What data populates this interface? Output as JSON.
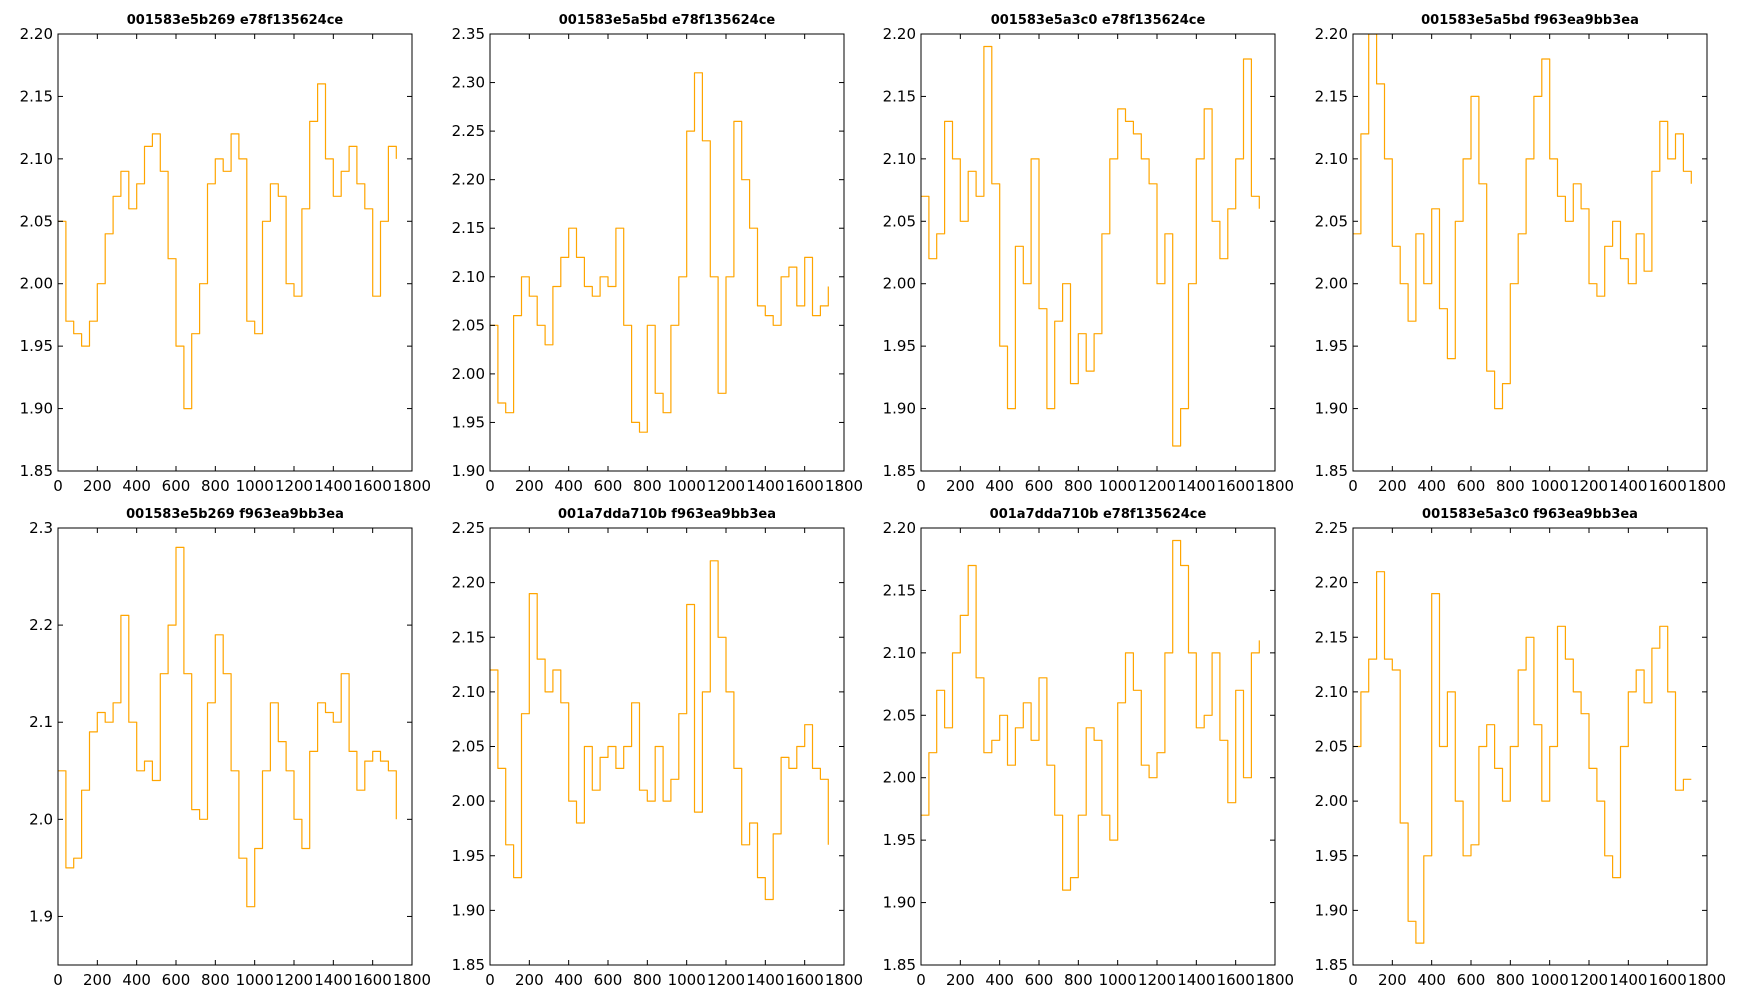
{
  "figure": {
    "background": "#ffffff",
    "line_color": "#ffa500",
    "grid": false,
    "legend": "none"
  },
  "chart_data": [
    {
      "type": "line",
      "title": "001583e5b269 e78f135624ce",
      "xlim": [
        0,
        1800
      ],
      "ylim": [
        1.85,
        2.2
      ],
      "xticks": [
        0,
        200,
        400,
        600,
        800,
        1000,
        1200,
        1400,
        1600,
        1800
      ],
      "xtick_labels": [
        "0",
        "200",
        "400",
        "600",
        "800",
        "1000",
        "1200",
        "1400",
        "1600",
        "1800"
      ],
      "yticks": [
        1.85,
        1.9,
        1.95,
        2.0,
        2.05,
        2.1,
        2.15,
        2.2
      ],
      "ytick_labels": [
        "1.85",
        "1.90",
        "1.95",
        "2.00",
        "2.05",
        "2.10",
        "2.15",
        "2.20"
      ],
      "series": [
        {
          "x": [
            0,
            40,
            80,
            120,
            160,
            200,
            240,
            280,
            320,
            360,
            400,
            440,
            480,
            520,
            560,
            600,
            640,
            680,
            720,
            760,
            800,
            840,
            880,
            920,
            960,
            1000,
            1040,
            1080,
            1120,
            1160,
            1200,
            1240,
            1280,
            1320,
            1360,
            1400,
            1440,
            1480,
            1520,
            1560,
            1600,
            1640,
            1680,
            1720
          ],
          "y": [
            2.05,
            1.97,
            1.96,
            1.95,
            1.97,
            2.0,
            2.04,
            2.07,
            2.09,
            2.06,
            2.08,
            2.11,
            2.12,
            2.09,
            2.02,
            1.95,
            1.9,
            1.96,
            2.0,
            2.08,
            2.1,
            2.09,
            2.12,
            2.1,
            1.97,
            1.96,
            2.05,
            2.08,
            2.07,
            2.0,
            1.99,
            2.06,
            2.13,
            2.16,
            2.1,
            2.07,
            2.09,
            2.11,
            2.08,
            2.06,
            1.99,
            2.05,
            2.11,
            2.1
          ]
        }
      ]
    },
    {
      "type": "line",
      "title": "001583e5a5bd e78f135624ce",
      "xlim": [
        0,
        1800
      ],
      "ylim": [
        1.9,
        2.35
      ],
      "xticks": [
        0,
        200,
        400,
        600,
        800,
        1000,
        1200,
        1400,
        1600,
        1800
      ],
      "xtick_labels": [
        "0",
        "200",
        "400",
        "600",
        "800",
        "1000",
        "1200",
        "1400",
        "1600",
        "1800"
      ],
      "yticks": [
        1.9,
        1.95,
        2.0,
        2.05,
        2.1,
        2.15,
        2.2,
        2.25,
        2.3,
        2.35
      ],
      "ytick_labels": [
        "1.90",
        "1.95",
        "2.00",
        "2.05",
        "2.10",
        "2.15",
        "2.20",
        "2.25",
        "2.30",
        "2.35"
      ],
      "series": [
        {
          "x": [
            0,
            40,
            80,
            120,
            160,
            200,
            240,
            280,
            320,
            360,
            400,
            440,
            480,
            520,
            560,
            600,
            640,
            680,
            720,
            760,
            800,
            840,
            880,
            920,
            960,
            1000,
            1040,
            1080,
            1120,
            1160,
            1200,
            1240,
            1280,
            1320,
            1360,
            1400,
            1440,
            1480,
            1520,
            1560,
            1600,
            1640,
            1680,
            1720
          ],
          "y": [
            2.05,
            1.97,
            1.96,
            2.06,
            2.1,
            2.08,
            2.05,
            2.03,
            2.09,
            2.12,
            2.15,
            2.12,
            2.09,
            2.08,
            2.1,
            2.09,
            2.15,
            2.05,
            1.95,
            1.94,
            2.05,
            1.98,
            1.96,
            2.05,
            2.1,
            2.25,
            2.31,
            2.24,
            2.1,
            1.98,
            2.1,
            2.26,
            2.2,
            2.15,
            2.07,
            2.06,
            2.05,
            2.1,
            2.11,
            2.07,
            2.12,
            2.06,
            2.07,
            2.09
          ]
        }
      ]
    },
    {
      "type": "line",
      "title": "001583e5a3c0 e78f135624ce",
      "xlim": [
        0,
        1800
      ],
      "ylim": [
        1.85,
        2.2
      ],
      "xticks": [
        0,
        200,
        400,
        600,
        800,
        1000,
        1200,
        1400,
        1600,
        1800
      ],
      "xtick_labels": [
        "0",
        "200",
        "400",
        "600",
        "800",
        "1000",
        "1200",
        "1400",
        "1600",
        "1800"
      ],
      "yticks": [
        1.85,
        1.9,
        1.95,
        2.0,
        2.05,
        2.1,
        2.15,
        2.2
      ],
      "ytick_labels": [
        "1.85",
        "1.90",
        "1.95",
        "2.00",
        "2.05",
        "2.10",
        "2.15",
        "2.20"
      ],
      "series": [
        {
          "x": [
            0,
            40,
            80,
            120,
            160,
            200,
            240,
            280,
            320,
            360,
            400,
            440,
            480,
            520,
            560,
            600,
            640,
            680,
            720,
            760,
            800,
            840,
            880,
            920,
            960,
            1000,
            1040,
            1080,
            1120,
            1160,
            1200,
            1240,
            1280,
            1320,
            1360,
            1400,
            1440,
            1480,
            1520,
            1560,
            1600,
            1640,
            1680,
            1720
          ],
          "y": [
            2.07,
            2.02,
            2.04,
            2.13,
            2.1,
            2.05,
            2.09,
            2.07,
            2.19,
            2.08,
            1.95,
            1.9,
            2.03,
            2.0,
            2.1,
            1.98,
            1.9,
            1.97,
            2.0,
            1.92,
            1.96,
            1.93,
            1.96,
            2.04,
            2.1,
            2.14,
            2.13,
            2.12,
            2.1,
            2.08,
            2.0,
            2.04,
            1.87,
            1.9,
            2.0,
            2.1,
            2.14,
            2.05,
            2.02,
            2.06,
            2.1,
            2.18,
            2.07,
            2.06
          ]
        }
      ]
    },
    {
      "type": "line",
      "title": "001583e5a5bd f963ea9bb3ea",
      "xlim": [
        0,
        1800
      ],
      "ylim": [
        1.85,
        2.2
      ],
      "xticks": [
        0,
        200,
        400,
        600,
        800,
        1000,
        1200,
        1400,
        1600,
        1800
      ],
      "xtick_labels": [
        "0",
        "200",
        "400",
        "600",
        "800",
        "1000",
        "1200",
        "1400",
        "1600",
        "1800"
      ],
      "yticks": [
        1.85,
        1.9,
        1.95,
        2.0,
        2.05,
        2.1,
        2.15,
        2.2
      ],
      "ytick_labels": [
        "1.85",
        "1.90",
        "1.95",
        "2.00",
        "2.05",
        "2.10",
        "2.15",
        "2.20"
      ],
      "series": [
        {
          "x": [
            0,
            40,
            80,
            120,
            160,
            200,
            240,
            280,
            320,
            360,
            400,
            440,
            480,
            520,
            560,
            600,
            640,
            680,
            720,
            760,
            800,
            840,
            880,
            920,
            960,
            1000,
            1040,
            1080,
            1120,
            1160,
            1200,
            1240,
            1280,
            1320,
            1360,
            1400,
            1440,
            1480,
            1520,
            1560,
            1600,
            1640,
            1680,
            1720
          ],
          "y": [
            2.04,
            2.12,
            2.2,
            2.16,
            2.1,
            2.03,
            2.0,
            1.97,
            2.04,
            2.0,
            2.06,
            1.98,
            1.94,
            2.05,
            2.1,
            2.15,
            2.08,
            1.93,
            1.9,
            1.92,
            2.0,
            2.04,
            2.1,
            2.15,
            2.18,
            2.1,
            2.07,
            2.05,
            2.08,
            2.06,
            2.0,
            1.99,
            2.03,
            2.05,
            2.02,
            2.0,
            2.04,
            2.01,
            2.09,
            2.13,
            2.1,
            2.12,
            2.09,
            2.08
          ]
        }
      ]
    },
    {
      "type": "line",
      "title": "001583e5b269 f963ea9bb3ea",
      "xlim": [
        0,
        1800
      ],
      "ylim": [
        1.85,
        2.3
      ],
      "xticks": [
        0,
        200,
        400,
        600,
        800,
        1000,
        1200,
        1400,
        1600,
        1800
      ],
      "xtick_labels": [
        "0",
        "200",
        "400",
        "600",
        "800",
        "1000",
        "1200",
        "1400",
        "1600",
        "1800"
      ],
      "yticks": [
        1.9,
        2.0,
        2.1,
        2.2,
        2.3
      ],
      "ytick_labels": [
        "1.9",
        "2.0",
        "2.1",
        "2.2",
        "2.3"
      ],
      "series": [
        {
          "x": [
            0,
            40,
            80,
            120,
            160,
            200,
            240,
            280,
            320,
            360,
            400,
            440,
            480,
            520,
            560,
            600,
            640,
            680,
            720,
            760,
            800,
            840,
            880,
            920,
            960,
            1000,
            1040,
            1080,
            1120,
            1160,
            1200,
            1240,
            1280,
            1320,
            1360,
            1400,
            1440,
            1480,
            1520,
            1560,
            1600,
            1640,
            1680,
            1720
          ],
          "y": [
            2.05,
            1.95,
            1.96,
            2.03,
            2.09,
            2.11,
            2.1,
            2.12,
            2.21,
            2.1,
            2.05,
            2.06,
            2.04,
            2.15,
            2.2,
            2.28,
            2.15,
            2.01,
            2.0,
            2.12,
            2.19,
            2.15,
            2.05,
            1.96,
            1.91,
            1.97,
            2.05,
            2.12,
            2.08,
            2.05,
            2.0,
            1.97,
            2.07,
            2.12,
            2.11,
            2.1,
            2.15,
            2.07,
            2.03,
            2.06,
            2.07,
            2.06,
            2.05,
            2.0
          ]
        }
      ]
    },
    {
      "type": "line",
      "title": "001a7dda710b f963ea9bb3ea",
      "xlim": [
        0,
        1800
      ],
      "ylim": [
        1.85,
        2.25
      ],
      "xticks": [
        0,
        200,
        400,
        600,
        800,
        1000,
        1200,
        1400,
        1600,
        1800
      ],
      "xtick_labels": [
        "0",
        "200",
        "400",
        "600",
        "800",
        "1000",
        "1200",
        "1400",
        "1600",
        "1800"
      ],
      "yticks": [
        1.85,
        1.9,
        1.95,
        2.0,
        2.05,
        2.1,
        2.15,
        2.2,
        2.25
      ],
      "ytick_labels": [
        "1.85",
        "1.90",
        "1.95",
        "2.00",
        "2.05",
        "2.10",
        "2.15",
        "2.20",
        "2.25"
      ],
      "series": [
        {
          "x": [
            0,
            40,
            80,
            120,
            160,
            200,
            240,
            280,
            320,
            360,
            400,
            440,
            480,
            520,
            560,
            600,
            640,
            680,
            720,
            760,
            800,
            840,
            880,
            920,
            960,
            1000,
            1040,
            1080,
            1120,
            1160,
            1200,
            1240,
            1280,
            1320,
            1360,
            1400,
            1440,
            1480,
            1520,
            1560,
            1600,
            1640,
            1680,
            1720
          ],
          "y": [
            2.12,
            2.03,
            1.96,
            1.93,
            2.08,
            2.19,
            2.13,
            2.1,
            2.12,
            2.09,
            2.0,
            1.98,
            2.05,
            2.01,
            2.04,
            2.05,
            2.03,
            2.05,
            2.09,
            2.01,
            2.0,
            2.05,
            2.0,
            2.02,
            2.08,
            2.18,
            1.99,
            2.1,
            2.22,
            2.15,
            2.1,
            2.03,
            1.96,
            1.98,
            1.93,
            1.91,
            1.97,
            2.04,
            2.03,
            2.05,
            2.07,
            2.03,
            2.02,
            1.96
          ]
        }
      ]
    },
    {
      "type": "line",
      "title": "001a7dda710b e78f135624ce",
      "xlim": [
        0,
        1800
      ],
      "ylim": [
        1.85,
        2.2
      ],
      "xticks": [
        0,
        200,
        400,
        600,
        800,
        1000,
        1200,
        1400,
        1600,
        1800
      ],
      "xtick_labels": [
        "0",
        "200",
        "400",
        "600",
        "800",
        "1000",
        "1200",
        "1400",
        "1600",
        "1800"
      ],
      "yticks": [
        1.85,
        1.9,
        1.95,
        2.0,
        2.05,
        2.1,
        2.15,
        2.2
      ],
      "ytick_labels": [
        "1.85",
        "1.90",
        "1.95",
        "2.00",
        "2.05",
        "2.10",
        "2.15",
        "2.20"
      ],
      "series": [
        {
          "x": [
            0,
            40,
            80,
            120,
            160,
            200,
            240,
            280,
            320,
            360,
            400,
            440,
            480,
            520,
            560,
            600,
            640,
            680,
            720,
            760,
            800,
            840,
            880,
            920,
            960,
            1000,
            1040,
            1080,
            1120,
            1160,
            1200,
            1240,
            1280,
            1320,
            1360,
            1400,
            1440,
            1480,
            1520,
            1560,
            1600,
            1640,
            1680,
            1720
          ],
          "y": [
            1.97,
            2.02,
            2.07,
            2.04,
            2.1,
            2.13,
            2.17,
            2.08,
            2.02,
            2.03,
            2.05,
            2.01,
            2.04,
            2.06,
            2.03,
            2.08,
            2.01,
            1.97,
            1.91,
            1.92,
            1.97,
            2.04,
            2.03,
            1.97,
            1.95,
            2.06,
            2.1,
            2.07,
            2.01,
            2.0,
            2.02,
            2.1,
            2.19,
            2.17,
            2.1,
            2.04,
            2.05,
            2.1,
            2.03,
            1.98,
            2.07,
            2.0,
            2.1,
            2.11
          ]
        }
      ]
    },
    {
      "type": "line",
      "title": "001583e5a3c0 f963ea9bb3ea",
      "xlim": [
        0,
        1800
      ],
      "ylim": [
        1.85,
        2.25
      ],
      "xticks": [
        0,
        200,
        400,
        600,
        800,
        1000,
        1200,
        1400,
        1600,
        1800
      ],
      "xtick_labels": [
        "0",
        "200",
        "400",
        "600",
        "800",
        "1000",
        "1200",
        "1400",
        "1600",
        "1800"
      ],
      "yticks": [
        1.85,
        1.9,
        1.95,
        2.0,
        2.05,
        2.1,
        2.15,
        2.2,
        2.25
      ],
      "ytick_labels": [
        "1.85",
        "1.90",
        "1.95",
        "2.00",
        "2.05",
        "2.10",
        "2.15",
        "2.20",
        "2.25"
      ],
      "series": [
        {
          "x": [
            0,
            40,
            80,
            120,
            160,
            200,
            240,
            280,
            320,
            360,
            400,
            440,
            480,
            520,
            560,
            600,
            640,
            680,
            720,
            760,
            800,
            840,
            880,
            920,
            960,
            1000,
            1040,
            1080,
            1120,
            1160,
            1200,
            1240,
            1280,
            1320,
            1360,
            1400,
            1440,
            1480,
            1520,
            1560,
            1600,
            1640,
            1680,
            1720
          ],
          "y": [
            2.05,
            2.1,
            2.13,
            2.21,
            2.13,
            2.12,
            1.98,
            1.89,
            1.87,
            1.95,
            2.19,
            2.05,
            2.1,
            2.0,
            1.95,
            1.96,
            2.05,
            2.07,
            2.03,
            2.0,
            2.05,
            2.12,
            2.15,
            2.07,
            2.0,
            2.05,
            2.16,
            2.13,
            2.1,
            2.08,
            2.03,
            2.0,
            1.95,
            1.93,
            2.05,
            2.1,
            2.12,
            2.09,
            2.14,
            2.16,
            2.1,
            2.01,
            2.02,
            2.02
          ]
        }
      ]
    }
  ]
}
